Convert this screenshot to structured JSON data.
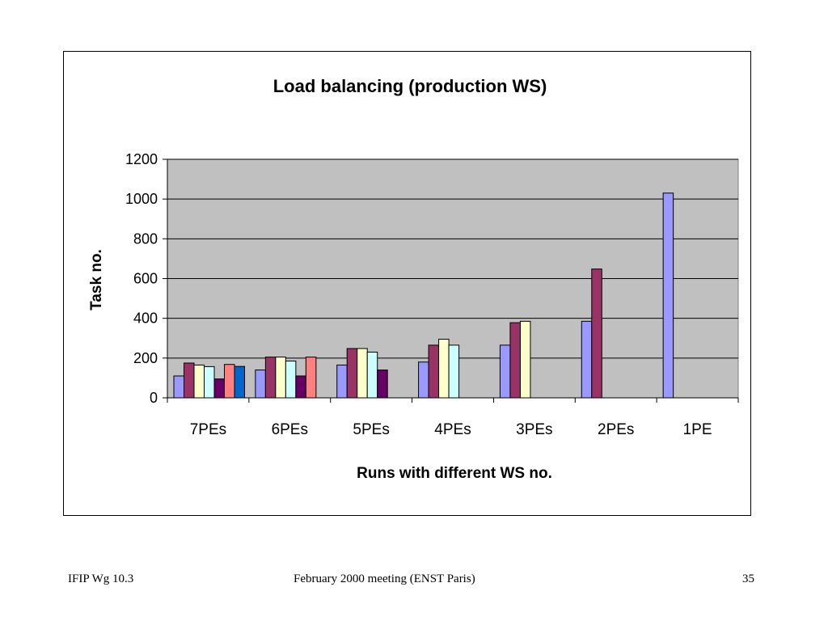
{
  "chart_data": {
    "type": "bar",
    "title": "Load balancing (production WS)",
    "xlabel": "Runs with different WS no.",
    "ylabel": "Task no.",
    "ylim": [
      0,
      1200
    ],
    "yticks": [
      "0",
      "200",
      "400",
      "600",
      "800",
      "1000",
      "1200"
    ],
    "grid": true,
    "legend": "none",
    "plot_background": "#c0c0c0",
    "categories": [
      "7PEs",
      "6PEs",
      "5PEs",
      "4PEs",
      "3PEs",
      "2PEs",
      "1PE"
    ],
    "series": [
      {
        "color": "#9999ff",
        "values": [
          110,
          140,
          165,
          180,
          265,
          385,
          1030
        ]
      },
      {
        "color": "#993366",
        "values": [
          175,
          205,
          248,
          265,
          378,
          648,
          null
        ]
      },
      {
        "color": "#ffffcc",
        "values": [
          165,
          205,
          248,
          295,
          385,
          null,
          null
        ]
      },
      {
        "color": "#ccffff",
        "values": [
          157,
          185,
          230,
          265,
          null,
          null,
          null
        ]
      },
      {
        "color": "#660066",
        "values": [
          95,
          110,
          140,
          null,
          null,
          null,
          null
        ]
      },
      {
        "color": "#ff8080",
        "values": [
          168,
          205,
          null,
          null,
          null,
          null,
          null
        ]
      },
      {
        "color": "#0066cc",
        "values": [
          158,
          null,
          null,
          null,
          null,
          null,
          null
        ]
      }
    ]
  },
  "footer": {
    "left": "IFIP Wg 10.3",
    "center": "February 2000 meeting (ENST Paris)",
    "right": "35"
  }
}
